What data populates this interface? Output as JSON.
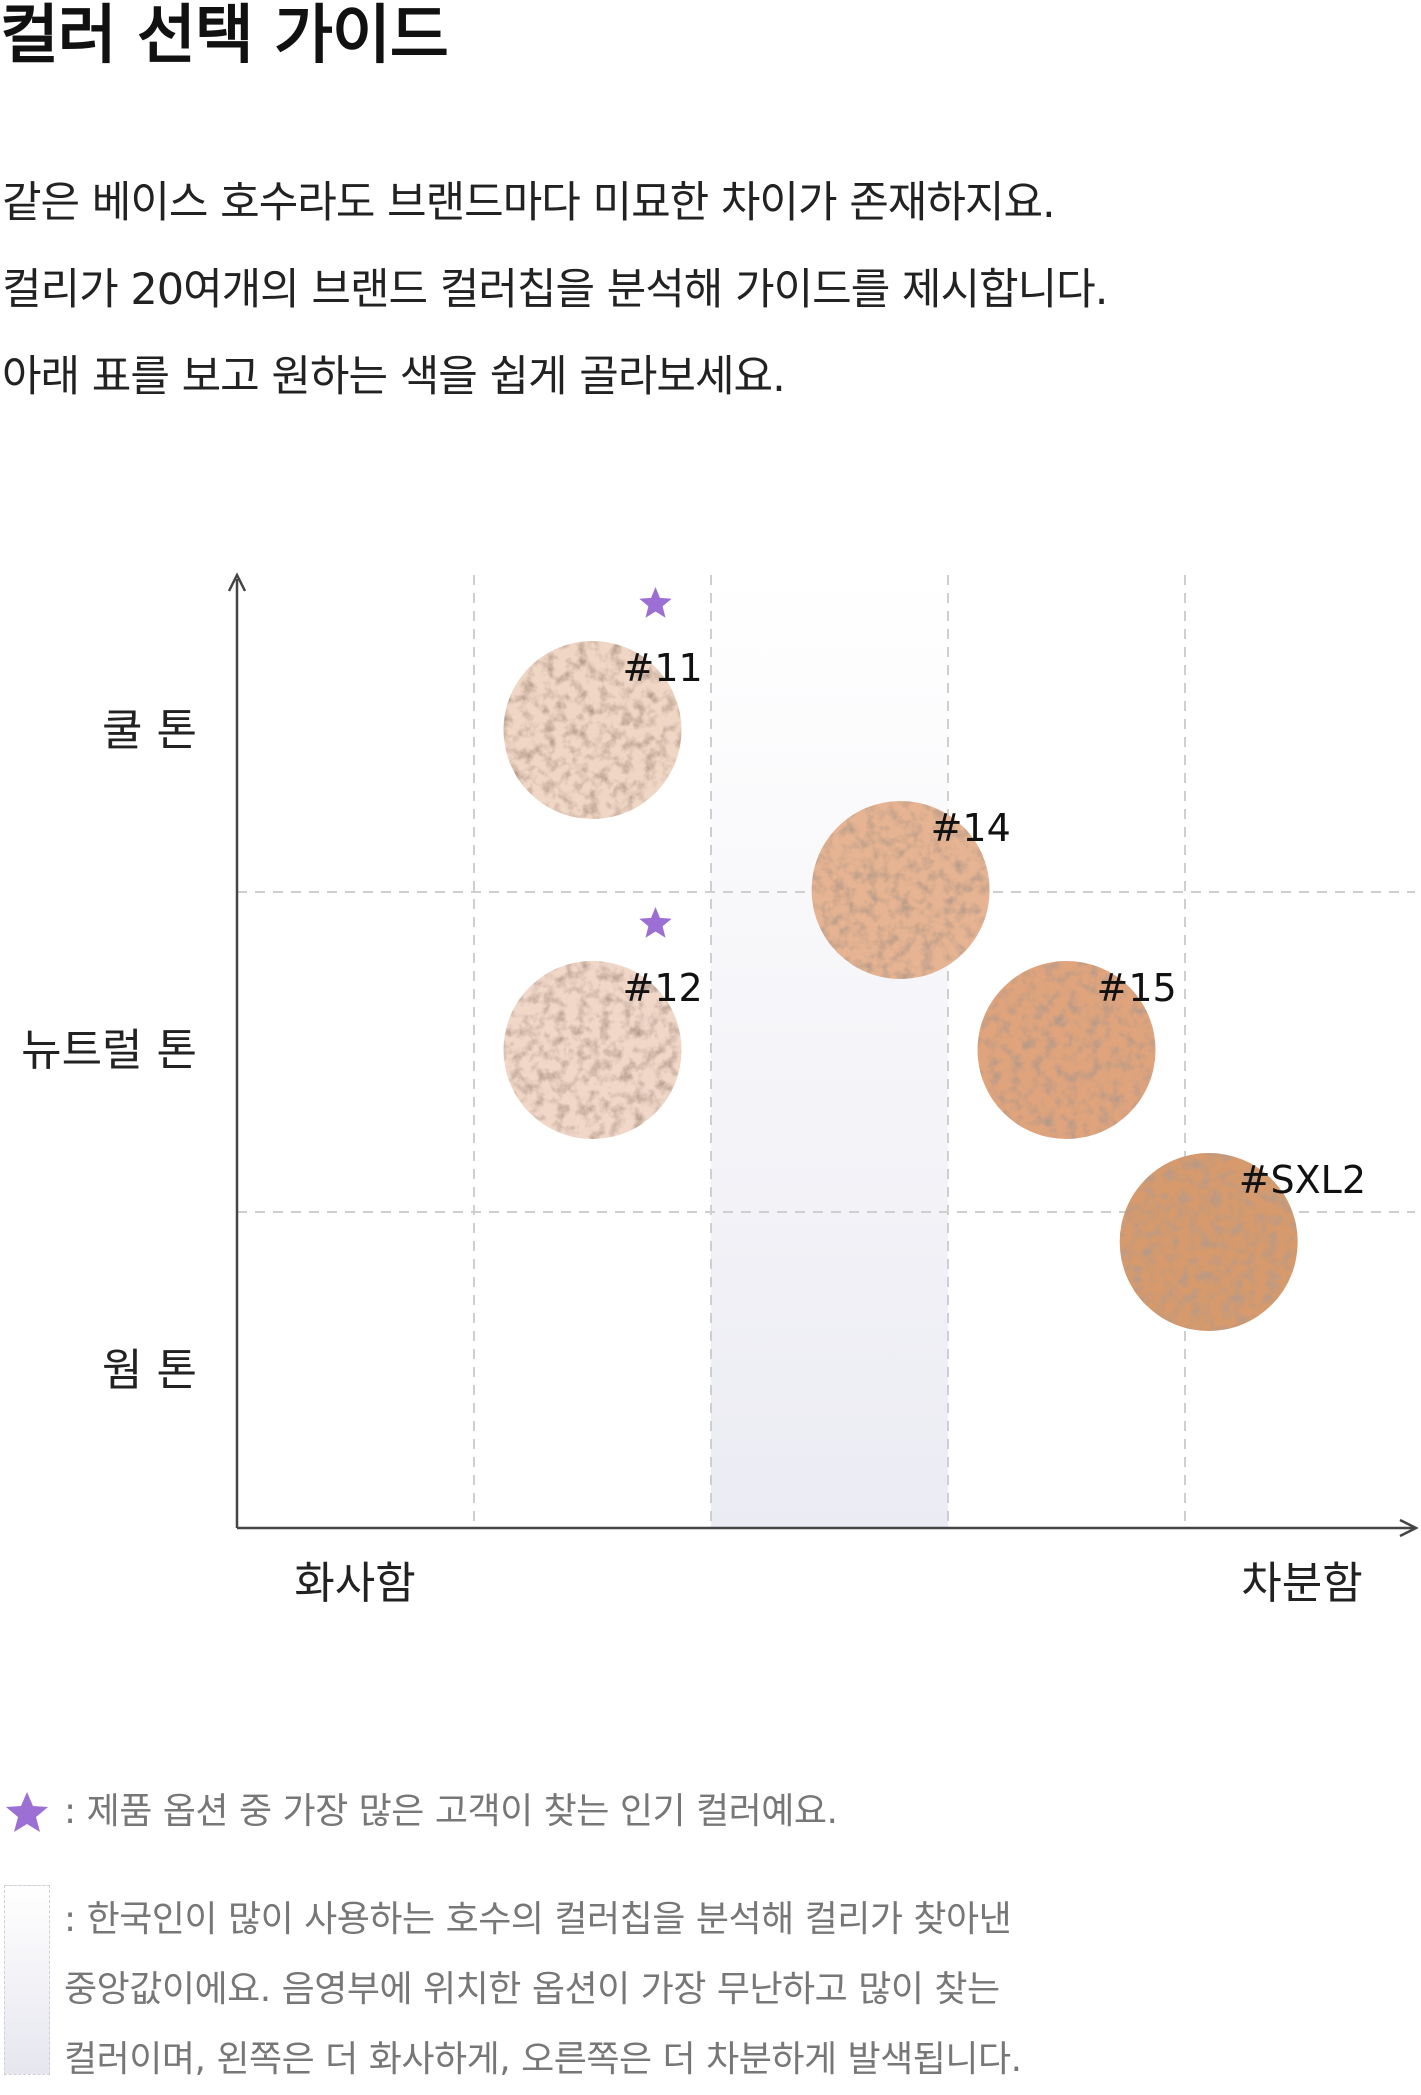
{
  "title": "컬러 선택 가이드",
  "intro": [
    "같은 베이스 호수라도 브랜드마다 미묘한 차이가 존재하지요.",
    "컬리가 20여개의 브랜드 컬러칩을 분석해 가이드를 제시합니다.",
    "아래 표를 보고 원하는 색을 쉽게 골라보세요."
  ],
  "chart_data": {
    "type": "scatter",
    "y_labels": [
      "쿨 톤",
      "뉴트럴 톤",
      "웜 톤"
    ],
    "x_labels": [
      "화사함",
      "차분함"
    ],
    "points": [
      {
        "label": "#11",
        "x": 2,
        "y": 0,
        "popular": true,
        "color": "#f0d6c4"
      },
      {
        "label": "#12",
        "x": 2,
        "y": 1,
        "popular": true,
        "color": "#f0d7c8"
      },
      {
        "label": "#14",
        "x": 3.3,
        "y": 0.5,
        "popular": false,
        "color": "#e6b492"
      },
      {
        "label": "#15",
        "x": 4,
        "y": 1,
        "popular": false,
        "color": "#e0a47c"
      },
      {
        "label": "#SXL2",
        "x": 4.6,
        "y": 1.6,
        "popular": false,
        "color": "#d69a6c"
      }
    ],
    "highlight_band": {
      "x_from": 3,
      "x_to": 4
    },
    "popular_color": "#9b6fd4",
    "grid": true
  },
  "legend": {
    "popular_text": ": 제품 옵션 중 가장 많은 고객이 찾는 인기 컬러예요.",
    "band_lines": [
      ": 한국인이 많이 사용하는 호수의 컬러칩을 분석해 컬리가 찾아낸",
      "중앙값이에요. 음영부에 위치한 옵션이 가장 무난하고 많이 찾는",
      "컬러이며, 왼쪽은 더 화사하게, 오른쪽은 더 차분하게 발색됩니다."
    ]
  }
}
